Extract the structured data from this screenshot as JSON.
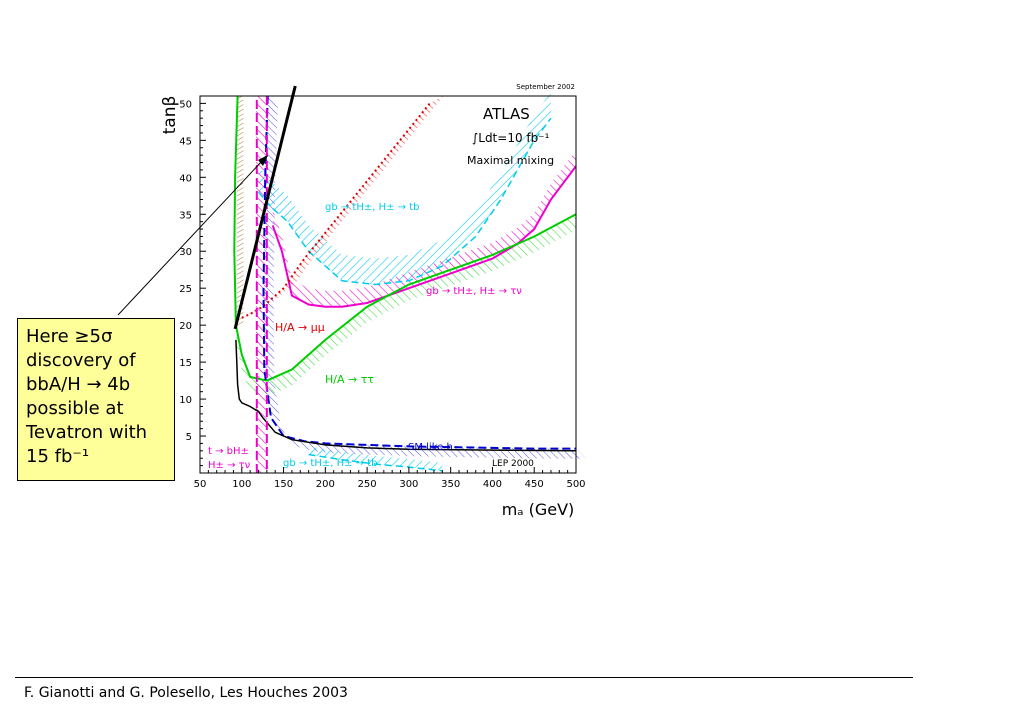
{
  "chart_data": {
    "type": "line",
    "date_label": "September 2002",
    "experiment": "ATLAS",
    "luminosity": "∫Ldt=10 fb⁻¹",
    "scenario": "Maximal mixing",
    "xlabel": "mₐ (GeV)",
    "ylabel": "tanβ",
    "xlim": [
      50,
      500
    ],
    "ylim": [
      0,
      51
    ],
    "xticks": [
      50,
      100,
      150,
      200,
      250,
      300,
      350,
      400,
      450,
      500
    ],
    "yticks": [
      5,
      10,
      15,
      20,
      25,
      30,
      35,
      40,
      45,
      50
    ],
    "series": [
      {
        "name": "gb → tH±, H± → tb",
        "color": "#00ccee",
        "x": [
          120,
          135,
          155,
          180,
          200,
          220,
          260,
          300,
          340,
          380,
          410,
          430,
          450,
          470
        ],
        "y": [
          38,
          36,
          34,
          30,
          28,
          26,
          25.5,
          26,
          28,
          32,
          37,
          41,
          45,
          48
        ]
      },
      {
        "name": "gb → tH±, H± → τν",
        "color": "#ee00cc",
        "x": [
          137,
          148,
          160,
          180,
          200,
          220,
          250,
          300,
          350,
          400,
          430,
          450,
          470,
          500
        ],
        "y": [
          33.5,
          30,
          24,
          22.8,
          22.5,
          22.5,
          23,
          25,
          27,
          29,
          31,
          33,
          37,
          41.5
        ]
      },
      {
        "name": "H/A → μμ",
        "color": "#dd0000",
        "x": [
          100,
          110,
          125,
          150,
          175,
          200,
          225,
          250,
          275,
          300,
          325
        ],
        "y": [
          21,
          21.5,
          22.5,
          25,
          29,
          32.5,
          36,
          39.5,
          43,
          46.5,
          50
        ]
      },
      {
        "name": "H/A → ττ",
        "color": "#00cc00",
        "x": [
          95,
          92,
          91,
          93,
          100,
          110,
          130,
          160,
          200,
          250,
          300,
          350,
          400,
          450,
          500
        ],
        "y": [
          51,
          40,
          30,
          20,
          16,
          13,
          12.5,
          14,
          18,
          22.5,
          25.5,
          27.5,
          29.5,
          32,
          35
        ]
      },
      {
        "name": "SM like h",
        "color": "#0000cc",
        "x": [
          131,
          128,
          126,
          127,
          135,
          150,
          175,
          200,
          250,
          300,
          350,
          400,
          450,
          500
        ],
        "y": [
          51,
          40,
          25,
          14,
          7.5,
          5,
          4.3,
          4,
          3.8,
          3.6,
          3.5,
          3.4,
          3.3,
          3.3
        ]
      },
      {
        "name": "LEP 2000",
        "color": "#000000",
        "x": [
          93,
          94,
          95,
          97,
          100,
          110,
          120,
          125,
          140,
          160,
          200,
          250,
          300,
          400,
          500
        ],
        "y": [
          18,
          15,
          12,
          10,
          9.5,
          9,
          8.3,
          7.5,
          5.5,
          4.5,
          3.8,
          3.4,
          3.2,
          3.1,
          3.0
        ]
      },
      {
        "name": "t → bH±, H± → τν",
        "color": "#ee00cc",
        "x": [
          118,
          118
        ],
        "y": [
          0,
          51
        ]
      },
      {
        "name": "gb → tH±, H± → tb (low)",
        "color": "#00ccee",
        "x": [
          180,
          220,
          260,
          300,
          340
        ],
        "y": [
          2.5,
          1.8,
          1.2,
          0.8,
          0.3
        ]
      }
    ],
    "annotation": {
      "lines": [
        "Here ≥5σ",
        "discovery of",
        "bbA/H → 4b",
        "possible at",
        "Tevatron with",
        "15 fb⁻¹"
      ],
      "tevatron_line": {
        "x": [
          92,
          164
        ],
        "y": [
          19.5,
          51
        ]
      }
    }
  },
  "labels": {
    "gb_tb": "gb → tH±, H± → tb",
    "gb_taunu": "gb → tH±, H± → τν",
    "mumu": "H/A → μμ",
    "tautau": "H/A → ττ",
    "smlike": "SM like h",
    "lep": "LEP 2000",
    "t_bh": "t → bH±",
    "h_taunu": "H± → τν",
    "gb_tb_low": "gb → tH±, H± → tb"
  },
  "colors": {
    "cyan": "#00ccee",
    "magenta": "#ee00cc",
    "red": "#dd0000",
    "green": "#00cc00",
    "blue": "#0000cc",
    "black": "#000000",
    "note_bg": "#ffff99"
  },
  "footer": "F. Gianotti and G. Polesello,  Les Houches 2003"
}
